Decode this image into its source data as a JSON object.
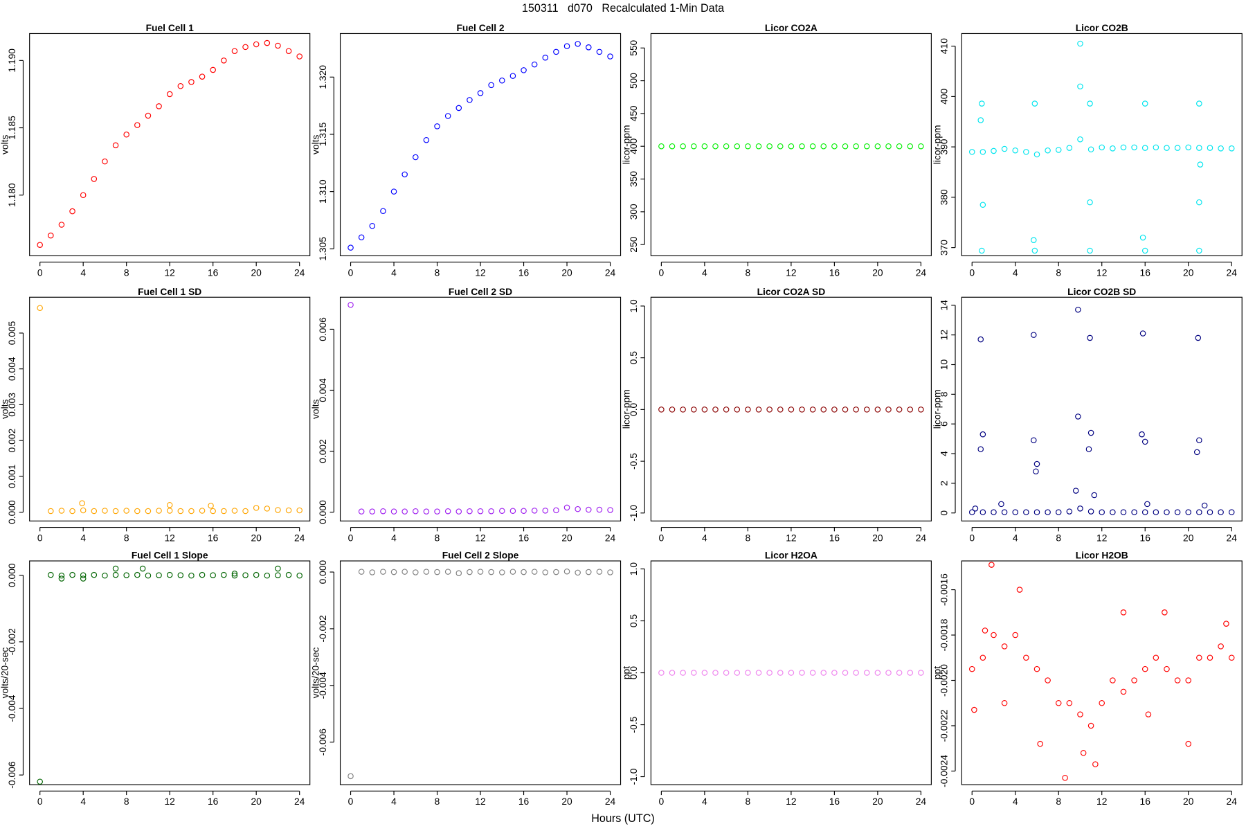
{
  "title": "150311   d070   Recalculated 1-Min Data",
  "xlabel": "Hours (UTC)",
  "chart_data": [
    {
      "type": "scatter",
      "title": "Fuel Cell 1",
      "ylabel": "volts",
      "color": "#ff0000",
      "x": [
        0,
        1,
        2,
        3,
        4,
        5,
        6,
        7,
        8,
        9,
        10,
        11,
        12,
        13,
        14,
        15,
        16,
        17,
        18,
        19,
        20,
        21,
        22,
        23,
        24
      ],
      "values": [
        1.1763,
        1.177,
        1.1778,
        1.1788,
        1.18,
        1.1812,
        1.1825,
        1.1837,
        1.1845,
        1.1852,
        1.1859,
        1.1866,
        1.1875,
        1.1881,
        1.1884,
        1.1888,
        1.1893,
        1.19,
        1.1907,
        1.191,
        1.1912,
        1.1913,
        1.1911,
        1.1907,
        1.1903
      ],
      "xlim": [
        -0.96,
        24.96
      ],
      "ylim": [
        1.1755,
        1.192
      ],
      "xticks": [
        0,
        4,
        8,
        12,
        16,
        20,
        24
      ],
      "yticks": [
        {
          "value": 1.18,
          "label": "1.180"
        },
        1.185,
        {
          "value": 1.19,
          "label": "1.190"
        }
      ]
    },
    {
      "type": "scatter",
      "title": "Fuel Cell 2",
      "ylabel": "volts",
      "color": "#0000ff",
      "x": [
        0,
        1,
        2,
        3,
        4,
        5,
        6,
        7,
        8,
        9,
        10,
        11,
        12,
        13,
        14,
        15,
        16,
        17,
        18,
        19,
        20,
        21,
        22,
        23,
        24
      ],
      "values": [
        1.3051,
        1.306,
        1.307,
        1.3083,
        1.31,
        1.3115,
        1.313,
        1.3145,
        1.3157,
        1.3166,
        1.3173,
        1.318,
        1.3186,
        1.3193,
        1.3197,
        1.3201,
        1.3206,
        1.3211,
        1.3217,
        1.3222,
        1.3227,
        1.3229,
        1.3226,
        1.3222,
        1.3218
      ],
      "xlim": [
        -0.96,
        24.96
      ],
      "ylim": [
        1.3044,
        1.3238
      ],
      "xticks": [
        0,
        4,
        8,
        12,
        16,
        20,
        24
      ],
      "yticks": [
        1.305,
        {
          "value": 1.31,
          "label": "1.310"
        },
        1.315,
        {
          "value": 1.32,
          "label": "1.320"
        }
      ]
    },
    {
      "type": "scatter",
      "title": "Licor CO2A",
      "ylabel": "licor-ppm",
      "color": "#00ee00",
      "x": [
        0,
        1,
        2,
        3,
        4,
        5,
        6,
        7,
        8,
        9,
        10,
        11,
        12,
        13,
        14,
        15,
        16,
        17,
        18,
        19,
        20,
        21,
        22,
        23,
        24
      ],
      "values": [
        400,
        400,
        400,
        400,
        400,
        400,
        400,
        400,
        400,
        400,
        400,
        400,
        400,
        400,
        400,
        400,
        400,
        400,
        400,
        400,
        400,
        400,
        400,
        400,
        400
      ],
      "xlim": [
        -0.96,
        24.96
      ],
      "ylim": [
        233,
        572
      ],
      "xticks": [
        0,
        4,
        8,
        12,
        16,
        20,
        24
      ],
      "yticks": [
        250,
        300,
        350,
        400,
        450,
        500,
        550
      ]
    },
    {
      "type": "scatter",
      "title": "Licor CO2B",
      "ylabel": "licor-ppm",
      "color": "#00e5ee",
      "x": [
        0,
        1,
        2,
        3,
        4,
        5,
        6,
        7,
        8,
        9,
        10,
        11,
        12,
        13,
        14,
        15,
        16,
        17,
        18,
        19,
        20,
        21,
        22,
        23,
        24,
        0.9,
        0.9,
        1.0,
        0.8,
        5.8,
        5.8,
        5.7,
        10.0,
        10.0,
        10.9,
        10.9,
        10.9,
        16,
        16,
        15.8,
        21,
        21,
        21,
        21.1
      ],
      "values": [
        389,
        389,
        389.2,
        389.6,
        389.3,
        389,
        388.5,
        389.3,
        389.4,
        389.8,
        391.5,
        389.5,
        389.9,
        389.7,
        389.9,
        389.9,
        389.8,
        389.9,
        389.8,
        389.8,
        389.9,
        389.8,
        389.8,
        389.7,
        389.7,
        398.6,
        369.4,
        378.5,
        395.3,
        398.6,
        369.4,
        371.5,
        410.5,
        402,
        398.6,
        369.4,
        379,
        398.6,
        369.4,
        372,
        398.6,
        369.4,
        379,
        386.5
      ],
      "xlim": [
        -0.96,
        24.96
      ],
      "ylim": [
        368.4,
        412.5
      ],
      "xticks": [
        0,
        4,
        8,
        12,
        16,
        20,
        24
      ],
      "yticks": [
        370,
        380,
        390,
        400,
        410
      ]
    },
    {
      "type": "scatter",
      "title": "Fuel Cell 1 SD",
      "ylabel": "volts",
      "color": "#ffa500",
      "x": [
        0,
        1,
        2,
        3,
        4,
        5,
        6,
        7,
        8,
        9,
        10,
        11,
        12,
        13,
        14,
        15,
        16,
        17,
        18,
        19,
        20,
        21,
        22,
        23,
        24,
        3.9,
        12.0,
        15.8
      ],
      "values": [
        0.0057,
        3e-05,
        4e-05,
        3e-05,
        5e-05,
        3e-05,
        4e-05,
        3e-05,
        4e-05,
        3e-05,
        3e-05,
        4e-05,
        4e-05,
        3e-05,
        3e-05,
        4e-05,
        3e-05,
        3e-05,
        4e-05,
        3e-05,
        0.00012,
        0.0001,
        6e-05,
        5e-05,
        5e-05,
        0.00025,
        0.0002,
        0.00018
      ],
      "xlim": [
        -0.96,
        24.96
      ],
      "ylim": [
        -0.000246,
        0.006
      ],
      "xticks": [
        0,
        4,
        8,
        12,
        16,
        20,
        24
      ],
      "yticks": [
        {
          "value": 0,
          "label": "0.000"
        },
        0.001,
        0.002,
        0.003,
        0.004,
        0.005
      ]
    },
    {
      "type": "scatter",
      "title": "Fuel Cell 2 SD",
      "ylabel": "volts",
      "color": "#a020f0",
      "x": [
        0,
        1,
        2,
        3,
        4,
        5,
        6,
        7,
        8,
        9,
        10,
        11,
        12,
        13,
        14,
        15,
        16,
        17,
        18,
        19,
        20,
        21,
        22,
        23,
        24
      ],
      "values": [
        0.0068,
        2e-05,
        2e-05,
        3e-05,
        2e-05,
        2e-05,
        3e-05,
        2e-05,
        2e-05,
        3e-05,
        2e-05,
        3e-05,
        3e-05,
        3e-05,
        4e-05,
        4e-05,
        4e-05,
        5e-05,
        5e-05,
        6e-05,
        0.00015,
        0.0001,
        8e-05,
        8e-05,
        7e-05
      ],
      "xlim": [
        -0.96,
        24.96
      ],
      "ylim": [
        -0.00029,
        0.00705
      ],
      "xticks": [
        0,
        4,
        8,
        12,
        16,
        20,
        24
      ],
      "yticks": [
        {
          "value": 0,
          "label": "0.000"
        },
        0.002,
        0.004,
        0.006
      ]
    },
    {
      "type": "scatter",
      "title": "Licor CO2A SD",
      "ylabel": "licor-ppm",
      "color": "#8b0000",
      "x": [
        0,
        1,
        2,
        3,
        4,
        5,
        6,
        7,
        8,
        9,
        10,
        11,
        12,
        13,
        14,
        15,
        16,
        17,
        18,
        19,
        20,
        21,
        22,
        23,
        24
      ],
      "values": [
        0,
        0,
        0,
        0,
        0,
        0,
        0,
        0,
        0,
        0,
        0,
        0,
        0,
        0,
        0,
        0,
        0,
        0,
        0,
        0,
        0,
        0,
        0,
        0,
        0
      ],
      "xlim": [
        -0.96,
        24.96
      ],
      "ylim": [
        -1.077,
        1.085
      ],
      "xticks": [
        0,
        4,
        8,
        12,
        16,
        20,
        24
      ],
      "yticks": [
        {
          "value": -1,
          "label": "-1.0"
        },
        -0.5,
        {
          "value": 0,
          "label": "0.0"
        },
        0.5,
        {
          "value": 1,
          "label": "1.0"
        }
      ]
    },
    {
      "type": "scatter",
      "title": "Licor CO2B SD",
      "ylabel": "licor-ppm",
      "color": "#000080",
      "x": [
        0,
        1,
        2,
        3,
        4,
        5,
        6,
        7,
        8,
        9,
        10,
        11,
        12,
        13,
        14,
        15,
        16,
        17,
        18,
        19,
        20,
        21,
        22,
        23,
        24,
        0.8,
        0.8,
        1,
        0.3,
        2.7,
        5.7,
        5.7,
        5.9,
        6,
        9.8,
        9.8,
        9.6,
        10.9,
        10.8,
        11,
        11.3,
        15.8,
        15.7,
        16,
        16.2,
        20.9,
        20.8,
        21,
        21.5
      ],
      "values": [
        0.05,
        0.05,
        0.05,
        0.05,
        0.05,
        0.05,
        0.05,
        0.05,
        0.05,
        0.1,
        0.3,
        0.1,
        0.05,
        0.05,
        0.05,
        0.05,
        0.05,
        0.05,
        0.05,
        0.05,
        0.05,
        0.05,
        0.05,
        0.05,
        0.05,
        11.7,
        4.3,
        5.3,
        0.3,
        0.6,
        12,
        4.9,
        2.8,
        3.3,
        13.7,
        6.5,
        1.5,
        11.8,
        4.3,
        5.4,
        1.2,
        12.1,
        5.3,
        4.8,
        0.6,
        11.8,
        4.1,
        4.9,
        0.5
      ],
      "xlim": [
        -0.96,
        24.96
      ],
      "ylim": [
        -0.54,
        14.54
      ],
      "xticks": [
        0,
        4,
        8,
        12,
        16,
        20,
        24
      ],
      "yticks": [
        0,
        2,
        4,
        6,
        8,
        10,
        12,
        14
      ]
    },
    {
      "type": "scatter",
      "title": "Fuel Cell 1 Slope",
      "ylabel": "volts/20-sec",
      "color": "#006400",
      "x": [
        0,
        1,
        2,
        3,
        4,
        5,
        6,
        7,
        8,
        9,
        10,
        11,
        12,
        13,
        14,
        15,
        16,
        17,
        18,
        19,
        20,
        21,
        22,
        23,
        24,
        2,
        7,
        9.5,
        22,
        4,
        18
      ],
      "values": [
        -0.0062,
        1e-05,
        -1e-05,
        1e-05,
        0,
        1e-05,
        -1e-05,
        1e-05,
        0,
        1e-05,
        -1e-05,
        0,
        1e-05,
        0,
        -1e-05,
        1e-05,
        0,
        1e-05,
        -1e-05,
        0,
        1e-05,
        -1e-05,
        0,
        1e-05,
        -1e-05,
        -0.0001,
        0.0002,
        0.0002,
        0.0002,
        -0.0001,
        5e-05
      ],
      "xlim": [
        -0.96,
        24.96
      ],
      "ylim": [
        -0.00629,
        0.00043
      ],
      "xticks": [
        0,
        4,
        8,
        12,
        16,
        20,
        24
      ],
      "yticks": [
        -0.006,
        -0.004,
        -0.002,
        {
          "value": 0,
          "label": "0.000"
        }
      ]
    },
    {
      "type": "scatter",
      "title": "Fuel Cell 2 Slope",
      "ylabel": "volts/20-sec",
      "color": "#808080",
      "x": [
        0,
        1,
        2,
        3,
        4,
        5,
        6,
        7,
        8,
        9,
        10,
        11,
        12,
        13,
        14,
        15,
        16,
        17,
        18,
        19,
        20,
        21,
        22,
        23,
        24
      ],
      "values": [
        -0.0072,
        1e-05,
        -1e-05,
        1e-05,
        0,
        1e-05,
        -1e-05,
        1e-05,
        0,
        1e-05,
        -4e-05,
        0,
        1e-05,
        0,
        -1e-05,
        1e-05,
        0,
        1e-05,
        -1e-05,
        0,
        2e-05,
        -2e-05,
        0,
        1e-05,
        -1e-05
      ],
      "xlim": [
        -0.96,
        24.96
      ],
      "ylim": [
        -0.0075,
        0.000392
      ],
      "xticks": [
        0,
        4,
        8,
        12,
        16,
        20,
        24
      ],
      "yticks": [
        -0.006,
        -0.004,
        -0.002,
        {
          "value": 0,
          "label": "0.000"
        }
      ]
    },
    {
      "type": "scatter",
      "title": "Licor H2OA",
      "ylabel": "ppt",
      "color": "#ee82ee",
      "x": [
        0,
        1,
        2,
        3,
        4,
        5,
        6,
        7,
        8,
        9,
        10,
        11,
        12,
        13,
        14,
        15,
        16,
        17,
        18,
        19,
        20,
        21,
        22,
        23,
        24
      ],
      "values": [
        0,
        0,
        0,
        0,
        0,
        0,
        0,
        0,
        0,
        0,
        0,
        0,
        0,
        0,
        0,
        0,
        0,
        0,
        0,
        0,
        0,
        0,
        0,
        0,
        0
      ],
      "xlim": [
        -0.96,
        24.96
      ],
      "ylim": [
        -1.077,
        1.077
      ],
      "xticks": [
        0,
        4,
        8,
        12,
        16,
        20,
        24
      ],
      "yticks": [
        {
          "value": -1,
          "label": "-1.0"
        },
        -0.5,
        {
          "value": 0,
          "label": "0.0"
        },
        0.5,
        {
          "value": 1,
          "label": "1.0"
        }
      ]
    },
    {
      "type": "scatter",
      "title": "Licor H2OB",
      "ylabel": "ppt",
      "color": "#ff0000",
      "x": [
        0,
        1,
        2,
        3,
        4,
        5,
        6,
        7,
        8,
        9,
        10,
        11,
        12,
        13,
        14,
        15,
        16,
        17,
        18,
        19,
        20,
        21,
        22,
        23,
        24,
        1.8,
        4.4,
        8.6,
        11.4,
        6.3,
        10.3,
        20,
        0.2,
        23.5,
        1.2,
        3,
        14,
        17.8,
        16.3
      ],
      "values": [
        -0.00195,
        -0.0019,
        -0.0018,
        -0.00185,
        -0.0018,
        -0.0019,
        -0.00195,
        -0.002,
        -0.0021,
        -0.0021,
        -0.00215,
        -0.0022,
        -0.0021,
        -0.002,
        -0.00205,
        -0.002,
        -0.00195,
        -0.0019,
        -0.00195,
        -0.002,
        -0.002,
        -0.0019,
        -0.0019,
        -0.00185,
        -0.0019,
        -0.00149,
        -0.0016,
        -0.00243,
        -0.00237,
        -0.00228,
        -0.00232,
        -0.00228,
        -0.00213,
        -0.00175,
        -0.00178,
        -0.0021,
        -0.0017,
        -0.0017,
        -0.00215
      ],
      "xlim": [
        -0.96,
        24.96
      ],
      "ylim": [
        -0.00246,
        -0.001473
      ],
      "xticks": [
        0,
        4,
        8,
        12,
        16,
        20,
        24
      ],
      "yticks": [
        -0.0024,
        -0.0022,
        {
          "value": -0.002,
          "label": "-0.0020"
        },
        -0.0018,
        -0.0016
      ]
    }
  ]
}
